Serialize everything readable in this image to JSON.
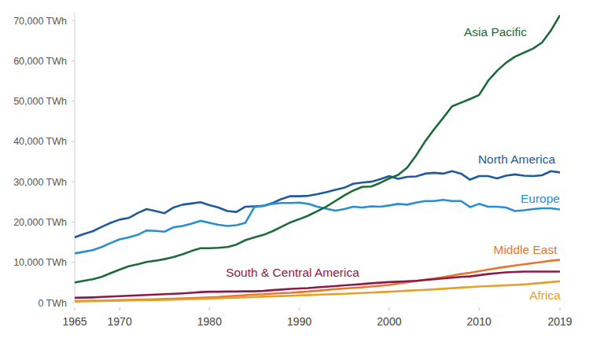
{
  "chart_data": {
    "type": "line",
    "x": [
      1965,
      1966,
      1967,
      1968,
      1969,
      1970,
      1971,
      1972,
      1973,
      1974,
      1975,
      1976,
      1977,
      1978,
      1979,
      1980,
      1981,
      1982,
      1983,
      1984,
      1985,
      1986,
      1987,
      1988,
      1989,
      1990,
      1991,
      1992,
      1993,
      1994,
      1995,
      1996,
      1997,
      1998,
      1999,
      2000,
      2001,
      2002,
      2003,
      2004,
      2005,
      2006,
      2007,
      2008,
      2009,
      2010,
      2011,
      2012,
      2013,
      2014,
      2015,
      2016,
      2017,
      2018,
      2019
    ],
    "xlim": [
      1965,
      2019
    ],
    "xticks": [
      1965,
      1970,
      1980,
      1990,
      2000,
      2010,
      2019
    ],
    "ylim": [
      0,
      72000
    ],
    "yticks": [
      {
        "value": 0,
        "label": "0 TWh"
      },
      {
        "value": 10000,
        "label": "10,000 TWh"
      },
      {
        "value": 20000,
        "label": "20,000 TWh"
      },
      {
        "value": 30000,
        "label": "30,000 TWh"
      },
      {
        "value": 40000,
        "label": "40,000 TWh"
      },
      {
        "value": 50000,
        "label": "50,000 TWh"
      },
      {
        "value": 60000,
        "label": "60,000 TWh"
      },
      {
        "value": 70000,
        "label": "70,000 TWh"
      }
    ],
    "grid": false,
    "series": [
      {
        "name": "North America",
        "color": "#1f5b9c",
        "values": [
          16200,
          17000,
          17700,
          18800,
          19800,
          20600,
          21000,
          22200,
          23200,
          22700,
          22200,
          23600,
          24300,
          24600,
          24900,
          24200,
          23600,
          22700,
          22500,
          23800,
          23900,
          24000,
          24700,
          25700,
          26400,
          26400,
          26500,
          26900,
          27400,
          28000,
          28500,
          29500,
          29800,
          30000,
          30600,
          31400,
          30700,
          31200,
          31300,
          32000,
          32200,
          32000,
          32600,
          32000,
          30500,
          31400,
          31400,
          30800,
          31500,
          31800,
          31500,
          31400,
          31600,
          32600,
          32300
        ]
      },
      {
        "name": "Europe",
        "color": "#2a8ed3",
        "values": [
          12200,
          12600,
          13000,
          13800,
          14800,
          15700,
          16200,
          16800,
          17900,
          17800,
          17600,
          18700,
          19000,
          19600,
          20300,
          19800,
          19300,
          19000,
          19200,
          19800,
          23700,
          24000,
          24500,
          24700,
          24700,
          24800,
          24500,
          23800,
          23300,
          22800,
          23200,
          23800,
          23600,
          23900,
          23800,
          24100,
          24500,
          24300,
          24800,
          25200,
          25200,
          25500,
          25200,
          25200,
          23700,
          24500,
          23800,
          23800,
          23600,
          22700,
          22900,
          23200,
          23400,
          23400,
          23100
        ]
      },
      {
        "name": "Asia Pacific",
        "color": "#1d6b38",
        "values": [
          5000,
          5400,
          5800,
          6400,
          7300,
          8200,
          9000,
          9500,
          10100,
          10400,
          10800,
          11300,
          12000,
          12800,
          13500,
          13500,
          13600,
          13800,
          14400,
          15500,
          16200,
          16800,
          17700,
          18800,
          19900,
          20700,
          21600,
          22700,
          23800,
          25200,
          26600,
          27800,
          28700,
          28800,
          29700,
          30800,
          31700,
          33500,
          36500,
          40000,
          43000,
          45800,
          48700,
          49600,
          50500,
          51500,
          55000,
          57500,
          59500,
          61000,
          62000,
          63000,
          64500,
          67500,
          71300
        ]
      },
      {
        "name": "Middle East",
        "color": "#e8762c",
        "values": [
          400,
          420,
          460,
          500,
          550,
          600,
          650,
          700,
          780,
          830,
          900,
          980,
          1050,
          1130,
          1200,
          1300,
          1400,
          1550,
          1700,
          1850,
          2000,
          2100,
          2250,
          2350,
          2450,
          2600,
          2750,
          2950,
          3150,
          3350,
          3500,
          3650,
          3800,
          4000,
          4200,
          4400,
          4750,
          5050,
          5350,
          5700,
          6000,
          6350,
          6700,
          7100,
          7400,
          7800,
          8200,
          8550,
          8900,
          9200,
          9500,
          9800,
          10100,
          10400,
          10600
        ]
      },
      {
        "name": "South & Central America",
        "color": "#8b1a4a",
        "values": [
          1200,
          1250,
          1300,
          1400,
          1500,
          1600,
          1700,
          1800,
          1900,
          2000,
          2100,
          2200,
          2300,
          2450,
          2600,
          2700,
          2700,
          2750,
          2750,
          2800,
          2800,
          2900,
          3100,
          3250,
          3400,
          3500,
          3600,
          3800,
          3950,
          4100,
          4300,
          4450,
          4600,
          4800,
          4950,
          5100,
          5200,
          5300,
          5400,
          5600,
          5800,
          6000,
          6200,
          6400,
          6500,
          6800,
          7100,
          7300,
          7500,
          7600,
          7700,
          7700,
          7700,
          7700,
          7700
        ]
      },
      {
        "name": "Africa",
        "color": "#e3a128",
        "values": [
          300,
          330,
          360,
          400,
          450,
          500,
          540,
          580,
          620,
          660,
          700,
          760,
          820,
          880,
          940,
          1000,
          1080,
          1160,
          1240,
          1320,
          1400,
          1480,
          1560,
          1640,
          1720,
          1800,
          1880,
          1960,
          2040,
          2120,
          2200,
          2300,
          2400,
          2500,
          2600,
          2700,
          2820,
          2940,
          3060,
          3180,
          3300,
          3440,
          3580,
          3720,
          3860,
          4000,
          4100,
          4200,
          4300,
          4400,
          4500,
          4700,
          4900,
          5100,
          5300
        ]
      }
    ]
  }
}
